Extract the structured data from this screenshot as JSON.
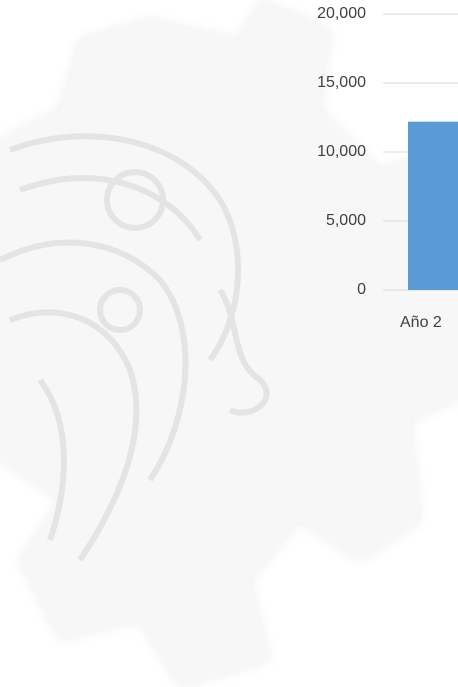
{
  "chart_data": {
    "type": "bar",
    "categories": [
      "Año 2"
    ],
    "values": [
      12200
    ],
    "color": "#5b9bd5",
    "ylim": [
      0,
      20000
    ],
    "yticks": [
      0,
      {
        "value": 5000,
        "label": "5,000"
      },
      {
        "value": 10000,
        "label": "10,000"
      },
      {
        "value": 15000,
        "label": "15,000"
      },
      {
        "value": 20000,
        "label": "20,000"
      }
    ],
    "grid": true
  }
}
